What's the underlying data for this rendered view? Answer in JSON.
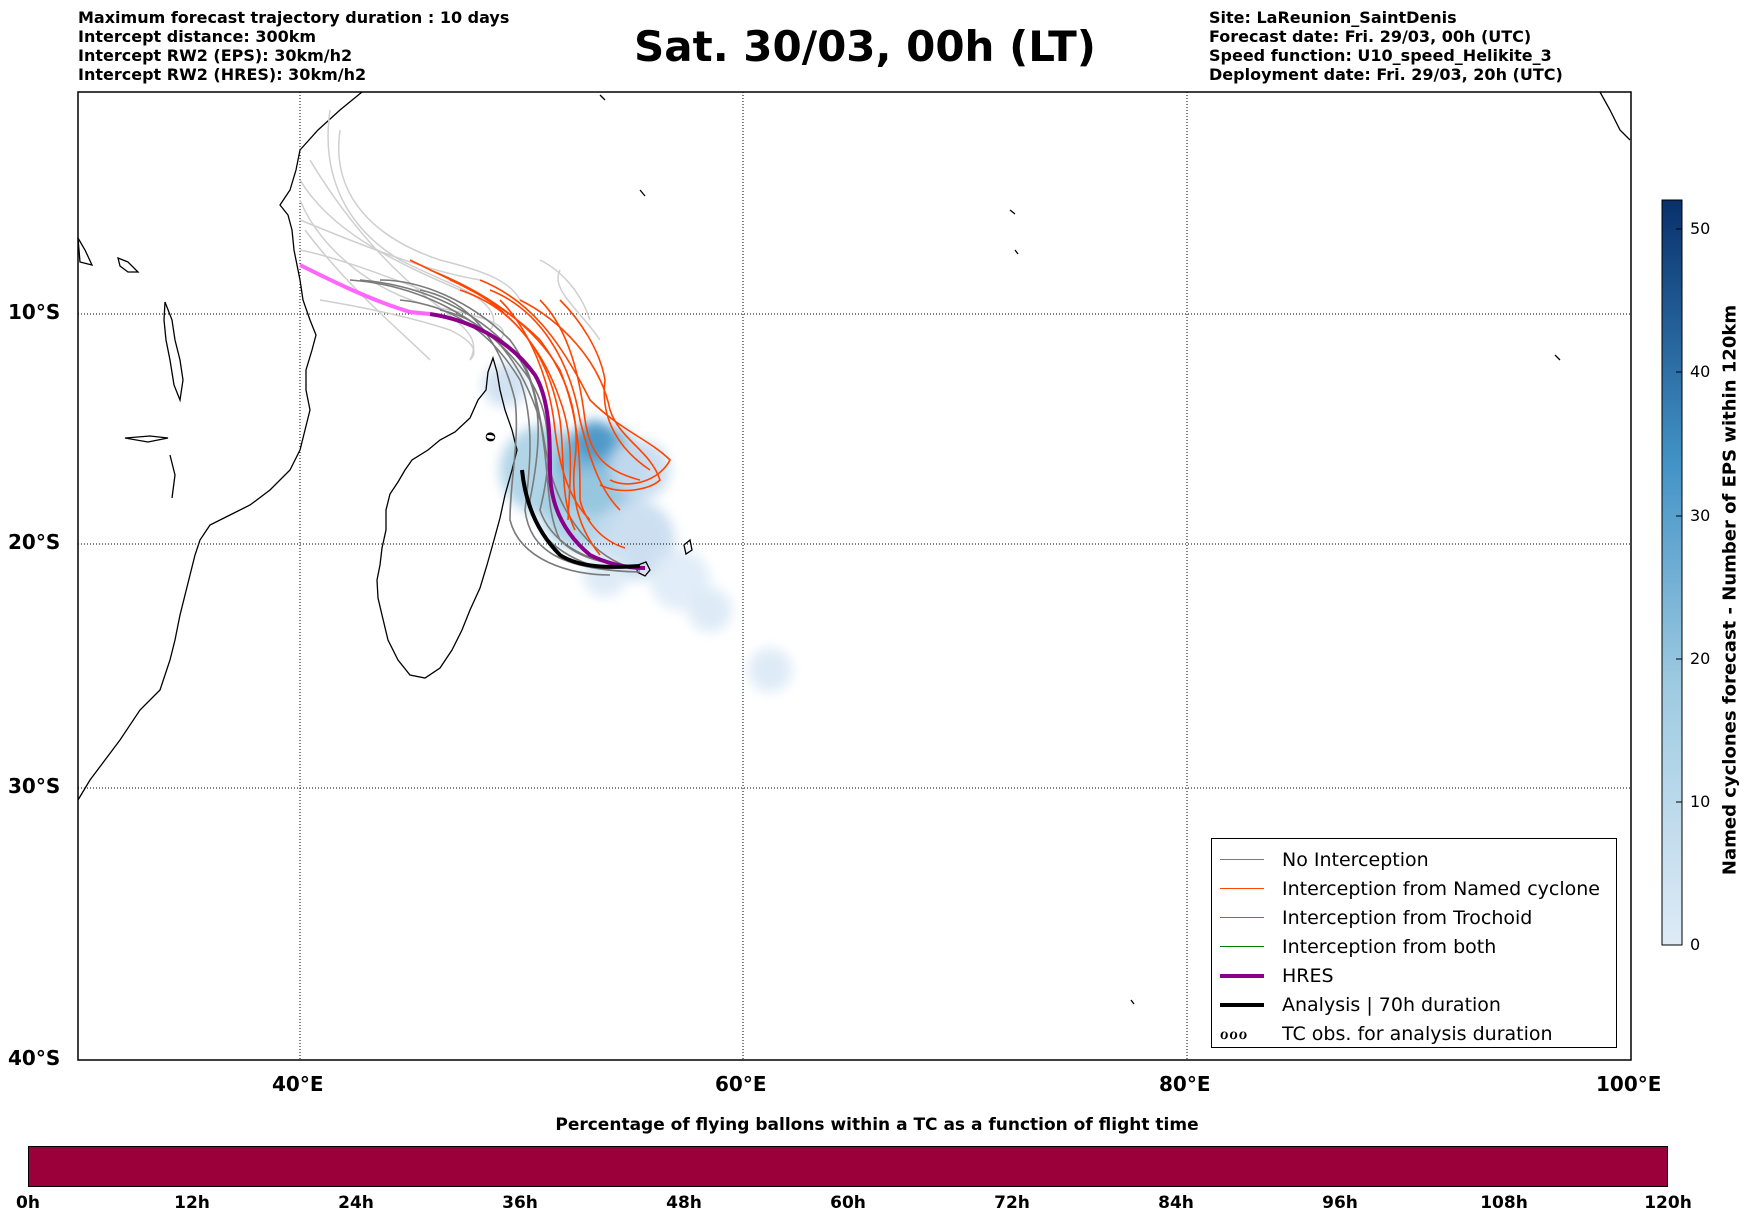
{
  "header_left": [
    "Maximum forecast trajectory duration : 10 days",
    "Intercept distance: 300km",
    "Intercept RW2 (EPS):  30km/h2",
    "Intercept RW2 (HRES): 30km/h2"
  ],
  "header_right": [
    "Site: LaReunion_SaintDenis",
    "Forecast date: Fri. 29/03, 00h (UTC)",
    "Speed function: U10_speed_Helikite_3",
    "Deployment date: Fri. 29/03, 20h (UTC)"
  ],
  "title": "Sat. 30/03, 00h (LT)",
  "map": {
    "lon_range": [
      30,
      100
    ],
    "lat_range": [
      -40,
      1
    ],
    "lat_labels": [
      "10°S",
      "20°S",
      "30°S",
      "40°S"
    ],
    "lon_labels": [
      "40°E",
      "60°E",
      "80°E",
      "100°E"
    ],
    "colors": {
      "no_interception": "#7a7a7a",
      "named_cyclone": "#ff4500",
      "trochoid": "#808000",
      "both": "#008000",
      "hres": "#8b008b",
      "analysis": "#000000",
      "past_track": "#ff66ff",
      "light_track": "#cfcfcf"
    }
  },
  "legend": {
    "items": [
      {
        "label": "No Interception",
        "color": "#7a7a7a",
        "style": "thin"
      },
      {
        "label": "Interception from Named cyclone",
        "color": "#ff4500",
        "style": "thin"
      },
      {
        "label": "Interception from Trochoid",
        "color": "#808000",
        "style": "thin"
      },
      {
        "label": "Interception from both",
        "color": "#008000",
        "style": "thin"
      },
      {
        "label": "HRES",
        "color": "#8b008b",
        "style": "thick"
      },
      {
        "label": "Analysis | 70h duration",
        "color": "#000000",
        "style": "thick"
      },
      {
        "label": "TC obs. for analysis duration",
        "color": "#000000",
        "style": "symbol",
        "symbol": "ℴℴℴ"
      }
    ]
  },
  "colorbar": {
    "title": "Named cyclones forecast - Number of EPS within 120km",
    "ticks": [
      "0",
      "10",
      "20",
      "30",
      "40",
      "50"
    ],
    "range": [
      0,
      52
    ],
    "colors": {
      "low": "#deebf7",
      "mid": "#6baed6",
      "high": "#08306b"
    }
  },
  "time_bar": {
    "title": "Percentage of flying ballons within a TC as a function of flight time",
    "ticks": [
      "0h",
      "12h",
      "24h",
      "36h",
      "48h",
      "60h",
      "72h",
      "84h",
      "96h",
      "108h",
      "120h"
    ],
    "fill_color": "#9b003b"
  }
}
